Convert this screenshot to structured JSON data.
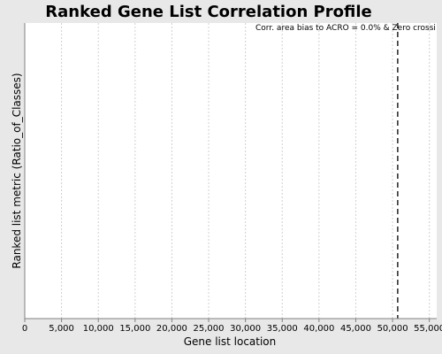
{
  "chart_data": {
    "type": "line",
    "title": "Ranked Gene List Correlation Profile",
    "xlabel": "Gene list location",
    "ylabel": "Ranked list metric (Ratio_of_Classes)",
    "xlim": [
      0,
      56000
    ],
    "xticks": [
      0,
      5000,
      10000,
      15000,
      20000,
      25000,
      30000,
      35000,
      40000,
      45000,
      50000,
      55000
    ],
    "xtick_labels": [
      "0",
      "5,000",
      "10,000",
      "15,000",
      "20,000",
      "25,000",
      "30,000",
      "35,000",
      "40,000",
      "45,000",
      "50,000",
      "55,000"
    ],
    "grid": "vertical dashed",
    "zero_crossing_x": 50700,
    "annotation": "Corr. area bias to ACRO = 0.0% & Zero crossi",
    "series": []
  }
}
